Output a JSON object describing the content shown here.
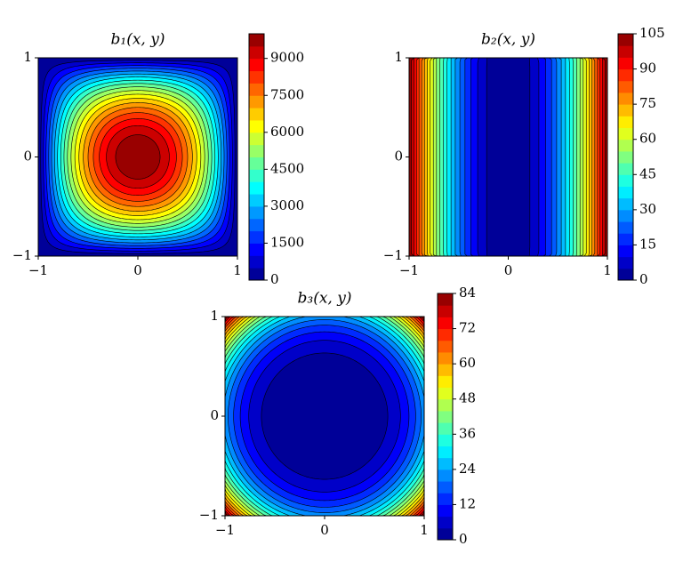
{
  "chart_data": [
    {
      "type": "contour",
      "title": "b₁(x, y)",
      "xlim": [
        -1,
        1
      ],
      "ylim": [
        -1,
        1
      ],
      "xticks": [
        {
          "value": -1,
          "label": "−1"
        },
        0,
        1
      ],
      "yticks": [
        {
          "value": -1,
          "label": "−1"
        },
        0,
        1
      ],
      "clim": [
        0,
        10000
      ],
      "cticks": [
        0,
        1500,
        3000,
        4500,
        6000,
        7500,
        9000
      ],
      "levels": [
        0,
        500,
        1000,
        1500,
        2000,
        2500,
        3000,
        3500,
        4000,
        4500,
        5000,
        5500,
        6000,
        6500,
        7000,
        7500,
        8000,
        8500,
        9000,
        9500,
        10000
      ],
      "colormap": "jet"
    },
    {
      "type": "contour",
      "title": "b₂(x, y)",
      "xlim": [
        -1,
        1
      ],
      "ylim": [
        -1,
        1
      ],
      "xticks": [
        {
          "value": -1,
          "label": "−1"
        },
        0,
        1
      ],
      "yticks": [
        {
          "value": -1,
          "label": "−1"
        },
        0,
        1
      ],
      "clim": [
        0,
        105
      ],
      "cticks": [
        0,
        15,
        30,
        45,
        60,
        75,
        90,
        105
      ],
      "levels": [
        0,
        5,
        10,
        15,
        20,
        25,
        30,
        35,
        40,
        45,
        50,
        55,
        60,
        65,
        70,
        75,
        80,
        85,
        90,
        95,
        100,
        105
      ],
      "colormap": "jet"
    },
    {
      "type": "contour",
      "title": "b₃(x, y)",
      "xlim": [
        -1,
        1
      ],
      "ylim": [
        -1,
        1
      ],
      "xticks": [
        {
          "value": -1,
          "label": "−1"
        },
        0,
        1
      ],
      "yticks": [
        {
          "value": -1,
          "label": "−1"
        },
        0,
        1
      ],
      "clim": [
        0,
        84
      ],
      "cticks": [
        0,
        12,
        24,
        36,
        48,
        60,
        72,
        84
      ],
      "levels": [
        0,
        4,
        8,
        12,
        16,
        20,
        24,
        28,
        32,
        36,
        40,
        44,
        48,
        52,
        56,
        60,
        64,
        68,
        72,
        76,
        80,
        84
      ],
      "colormap": "jet"
    }
  ]
}
